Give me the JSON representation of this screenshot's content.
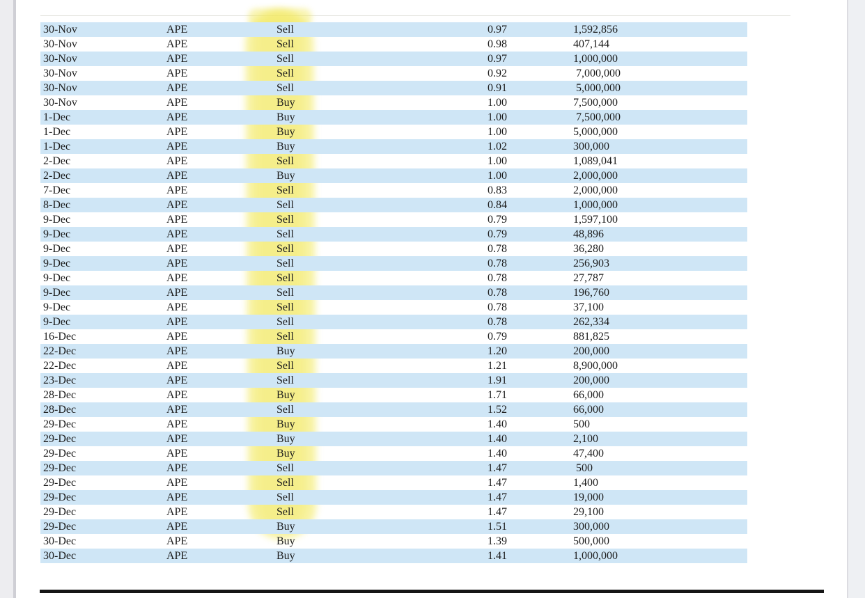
{
  "page": {
    "background_color": "#ffffff",
    "viewer_margin_color": "#ededf0",
    "row_stripe_color": "#cfe6f6",
    "highlight_color": "#f1e84d",
    "text_color": "#1c1c1c"
  },
  "table": {
    "rows": [
      {
        "date": "30-Nov",
        "ticker": "APE",
        "side": "Sell",
        "price": "0.97",
        "quantity": "1,592,856"
      },
      {
        "date": "30-Nov",
        "ticker": "APE",
        "side": "Sell",
        "price": "0.98",
        "quantity": "407,144"
      },
      {
        "date": "30-Nov",
        "ticker": "APE",
        "side": "Sell",
        "price": "0.97",
        "quantity": "1,000,000"
      },
      {
        "date": "30-Nov",
        "ticker": "APE",
        "side": "Sell",
        "price": "0.92",
        "quantity": " 7,000,000"
      },
      {
        "date": "30-Nov",
        "ticker": "APE",
        "side": "Sell",
        "price": "0.91",
        "quantity": " 5,000,000"
      },
      {
        "date": "30-Nov",
        "ticker": "APE",
        "side": "Buy",
        "price": "1.00",
        "quantity": "7,500,000"
      },
      {
        "date": "1-Dec",
        "ticker": "APE",
        "side": "Buy",
        "price": "1.00",
        "quantity": " 7,500,000"
      },
      {
        "date": "1-Dec",
        "ticker": "APE",
        "side": "Buy",
        "price": "1.00",
        "quantity": "5,000,000"
      },
      {
        "date": "1-Dec",
        "ticker": "APE",
        "side": "Buy",
        "price": "1.02",
        "quantity": "300,000"
      },
      {
        "date": "2-Dec",
        "ticker": "APE",
        "side": "Sell",
        "price": "1.00",
        "quantity": "1,089,041"
      },
      {
        "date": "2-Dec",
        "ticker": "APE",
        "side": "Buy",
        "price": "1.00",
        "quantity": "2,000,000"
      },
      {
        "date": "7-Dec",
        "ticker": "APE",
        "side": "Sell",
        "price": "0.83",
        "quantity": "2,000,000"
      },
      {
        "date": "8-Dec",
        "ticker": "APE",
        "side": "Sell",
        "price": "0.84",
        "quantity": "1,000,000"
      },
      {
        "date": "9-Dec",
        "ticker": "APE",
        "side": "Sell",
        "price": "0.79",
        "quantity": "1,597,100"
      },
      {
        "date": "9-Dec",
        "ticker": "APE",
        "side": "Sell",
        "price": "0.79",
        "quantity": "48,896"
      },
      {
        "date": "9-Dec",
        "ticker": "APE",
        "side": "Sell",
        "price": "0.78",
        "quantity": "36,280"
      },
      {
        "date": "9-Dec",
        "ticker": "APE",
        "side": "Sell",
        "price": "0.78",
        "quantity": "256,903"
      },
      {
        "date": "9-Dec",
        "ticker": "APE",
        "side": "Sell",
        "price": "0.78",
        "quantity": "27,787"
      },
      {
        "date": "9-Dec",
        "ticker": "APE",
        "side": "Sell",
        "price": "0.78",
        "quantity": "196,760"
      },
      {
        "date": "9-Dec",
        "ticker": "APE",
        "side": "Sell",
        "price": "0.78",
        "quantity": "37,100"
      },
      {
        "date": "9-Dec",
        "ticker": "APE",
        "side": "Sell",
        "price": "0.78",
        "quantity": "262,334"
      },
      {
        "date": "16-Dec",
        "ticker": "APE",
        "side": "Sell",
        "price": "0.79",
        "quantity": "881,825"
      },
      {
        "date": "22-Dec",
        "ticker": "APE",
        "side": "Buy",
        "price": "1.20",
        "quantity": "200,000"
      },
      {
        "date": "22-Dec",
        "ticker": "APE",
        "side": "Sell",
        "price": "1.21",
        "quantity": "8,900,000"
      },
      {
        "date": "23-Dec",
        "ticker": "APE",
        "side": "Sell",
        "price": "1.91",
        "quantity": "200,000"
      },
      {
        "date": "28-Dec",
        "ticker": "APE",
        "side": "Buy",
        "price": "1.71",
        "quantity": "66,000"
      },
      {
        "date": "28-Dec",
        "ticker": "APE",
        "side": "Sell",
        "price": "1.52",
        "quantity": "66,000"
      },
      {
        "date": "29-Dec",
        "ticker": "APE",
        "side": "Buy",
        "price": "1.40",
        "quantity": "500"
      },
      {
        "date": "29-Dec",
        "ticker": "APE",
        "side": "Buy",
        "price": "1.40",
        "quantity": "2,100"
      },
      {
        "date": "29-Dec",
        "ticker": "APE",
        "side": "Buy",
        "price": "1.40",
        "quantity": "47,400"
      },
      {
        "date": "29-Dec",
        "ticker": "APE",
        "side": "Sell",
        "price": "1.47",
        "quantity": " 500"
      },
      {
        "date": "29-Dec",
        "ticker": "APE",
        "side": "Sell",
        "price": "1.47",
        "quantity": "1,400"
      },
      {
        "date": "29-Dec",
        "ticker": "APE",
        "side": "Sell",
        "price": "1.47",
        "quantity": "19,000"
      },
      {
        "date": "29-Dec",
        "ticker": "APE",
        "side": "Sell",
        "price": "1.47",
        "quantity": "29,100"
      },
      {
        "date": "29-Dec",
        "ticker": "APE",
        "side": "Buy",
        "price": "1.51",
        "quantity": "300,000"
      },
      {
        "date": "30-Dec",
        "ticker": "APE",
        "side": "Buy",
        "price": "1.39",
        "quantity": "500,000"
      },
      {
        "date": "30-Dec",
        "ticker": "APE",
        "side": "Buy",
        "price": "1.41",
        "quantity": "1,000,000"
      }
    ]
  }
}
